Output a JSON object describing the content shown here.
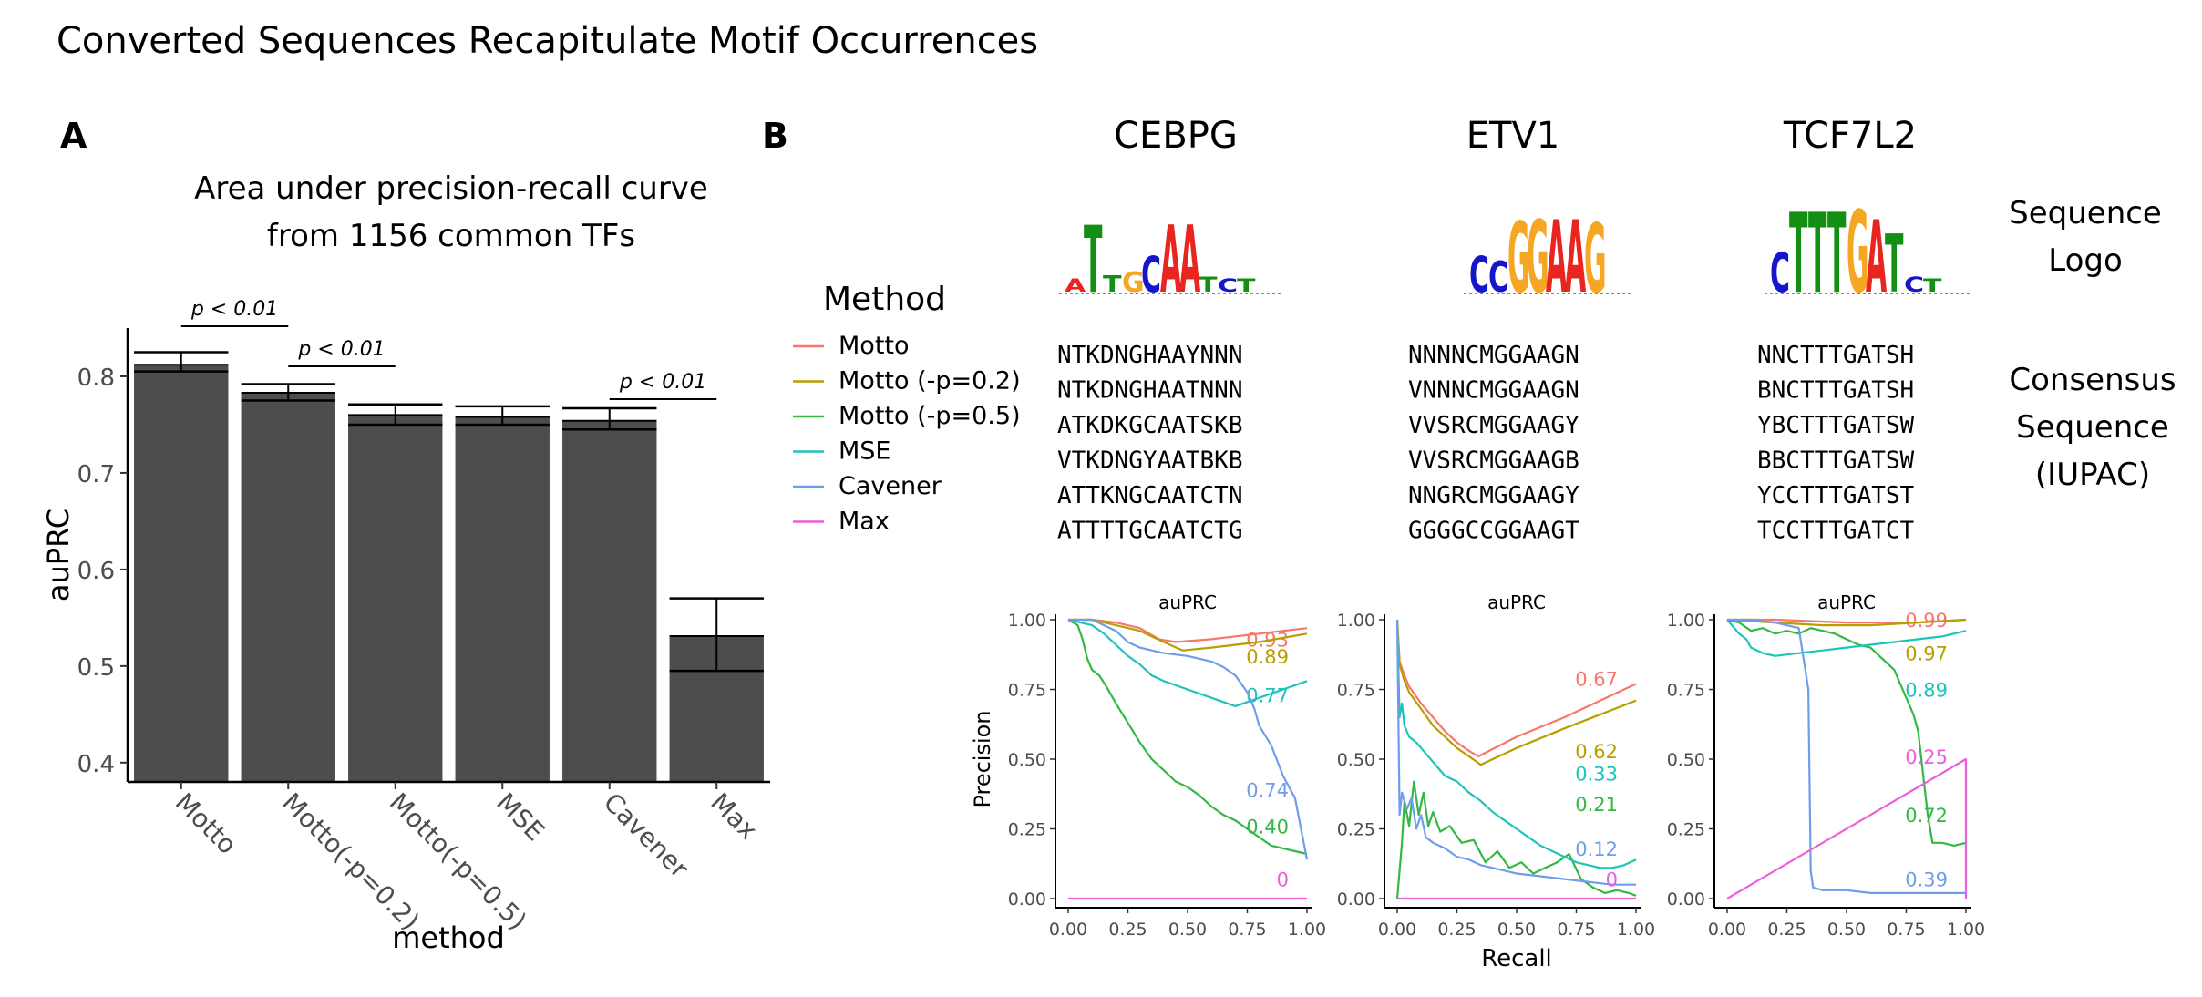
{
  "title": "Converted Sequences Recapitulate Motif Occurrences",
  "panel_labels": {
    "a": "A",
    "b": "B"
  },
  "colors": {
    "bar": "#4d4d4d",
    "Motto": "#F8766D",
    "Motto (-p=0.2)": "#B79F00",
    "Motto (-p=0.5)": "#32B843",
    "MSE": "#1FC3B9",
    "Cavener": "#6F9DEE",
    "Max": "#EC5FDB"
  },
  "chart_data": [
    {
      "type": "bar",
      "title": "Area under precision-recall curve",
      "subtitle": "from 1156 common TFs",
      "xlabel": "method",
      "ylabel": "auPRC",
      "categories": [
        "Motto",
        "Motto(-p=0.2)",
        "Motto(-p=0.5)",
        "MSE",
        "Cavener",
        "Max"
      ],
      "values": [
        0.812,
        0.783,
        0.76,
        0.758,
        0.754,
        0.531
      ],
      "error_low": [
        0.805,
        0.775,
        0.75,
        0.75,
        0.745,
        0.495
      ],
      "error_high": [
        0.825,
        0.792,
        0.771,
        0.769,
        0.767,
        0.57
      ],
      "ylim": [
        0.38,
        0.85
      ],
      "yticks": [
        0.4,
        0.5,
        0.6,
        0.7,
        0.8
      ],
      "annotations": [
        {
          "text": "p < 0.01",
          "from": "Motto",
          "to": "Motto(-p=0.2)"
        },
        {
          "text": "p < 0.01",
          "from": "Motto(-p=0.2)",
          "to": "Motto(-p=0.5)"
        },
        {
          "text": "p < 0.01",
          "from": "Cavener",
          "to": "Max"
        }
      ],
      "grid": false
    },
    {
      "type": "line",
      "facet": "CEBPG",
      "title": "auPRC",
      "xlabel": "",
      "ylabel": "Precision",
      "xlim": [
        0,
        1
      ],
      "ylim": [
        0,
        1
      ],
      "ticks": [
        "0.00",
        "0.25",
        "0.50",
        "0.75",
        "1.00"
      ],
      "series": [
        {
          "name": "Motto",
          "auprc": "0.93",
          "x": [
            0,
            0.1,
            0.2,
            0.3,
            0.38,
            0.45,
            0.6,
            0.8,
            1.0
          ],
          "y": [
            1.0,
            1.0,
            0.99,
            0.97,
            0.93,
            0.92,
            0.93,
            0.95,
            0.97
          ]
        },
        {
          "name": "Motto (-p=0.2)",
          "auprc": "0.89",
          "x": [
            0,
            0.1,
            0.2,
            0.3,
            0.4,
            0.48,
            0.6,
            0.8,
            1.0
          ],
          "y": [
            1.0,
            1.0,
            0.98,
            0.96,
            0.92,
            0.89,
            0.9,
            0.92,
            0.95
          ]
        },
        {
          "name": "Motto (-p=0.5)",
          "auprc": "0.40",
          "x": [
            0,
            0.04,
            0.06,
            0.08,
            0.1,
            0.13,
            0.16,
            0.2,
            0.25,
            0.3,
            0.35,
            0.4,
            0.45,
            0.5,
            0.55,
            0.6,
            0.65,
            0.7,
            0.75,
            0.8,
            0.85,
            0.9,
            0.95,
            1.0
          ],
          "y": [
            1.0,
            0.98,
            0.93,
            0.86,
            0.82,
            0.8,
            0.76,
            0.7,
            0.63,
            0.56,
            0.5,
            0.46,
            0.42,
            0.4,
            0.37,
            0.33,
            0.3,
            0.28,
            0.25,
            0.22,
            0.19,
            0.18,
            0.17,
            0.16
          ]
        },
        {
          "name": "MSE",
          "auprc": "0.77",
          "x": [
            0,
            0.05,
            0.1,
            0.15,
            0.2,
            0.25,
            0.3,
            0.35,
            0.4,
            0.5,
            0.6,
            0.7,
            0.8,
            0.9,
            1.0
          ],
          "y": [
            1.0,
            0.99,
            0.98,
            0.95,
            0.91,
            0.87,
            0.84,
            0.8,
            0.78,
            0.75,
            0.72,
            0.69,
            0.72,
            0.75,
            0.78
          ]
        },
        {
          "name": "Cavener",
          "auprc": "0.74",
          "x": [
            0,
            0.1,
            0.15,
            0.2,
            0.25,
            0.3,
            0.4,
            0.5,
            0.6,
            0.65,
            0.7,
            0.75,
            0.78,
            0.8,
            0.85,
            0.9,
            0.95,
            1.0
          ],
          "y": [
            1.0,
            1.0,
            0.98,
            0.96,
            0.92,
            0.9,
            0.88,
            0.87,
            0.85,
            0.83,
            0.8,
            0.74,
            0.68,
            0.62,
            0.55,
            0.44,
            0.36,
            0.14
          ]
        },
        {
          "name": "Max",
          "auprc": "0",
          "x": [
            0,
            1
          ],
          "y": [
            0,
            0
          ]
        }
      ]
    },
    {
      "type": "line",
      "facet": "ETV1",
      "title": "auPRC",
      "xlabel": "Recall",
      "ylabel": "",
      "xlim": [
        0,
        1
      ],
      "ylim": [
        0,
        1
      ],
      "ticks": [
        "0.00",
        "0.25",
        "0.50",
        "0.75",
        "1.00"
      ],
      "series": [
        {
          "name": "Motto",
          "auprc": "0.67",
          "x": [
            0,
            0.01,
            0.03,
            0.05,
            0.1,
            0.15,
            0.2,
            0.25,
            0.3,
            0.34,
            0.5,
            0.7,
            1.0
          ],
          "y": [
            1.0,
            0.85,
            0.8,
            0.76,
            0.7,
            0.65,
            0.6,
            0.56,
            0.53,
            0.51,
            0.58,
            0.65,
            0.77
          ]
        },
        {
          "name": "Motto (-p=0.2)",
          "auprc": "0.62",
          "x": [
            0,
            0.01,
            0.03,
            0.05,
            0.1,
            0.15,
            0.2,
            0.25,
            0.3,
            0.35,
            0.5,
            0.7,
            1.0
          ],
          "y": [
            1.0,
            0.84,
            0.78,
            0.74,
            0.68,
            0.62,
            0.58,
            0.54,
            0.51,
            0.48,
            0.54,
            0.61,
            0.71
          ]
        },
        {
          "name": "Motto (-p=0.5)",
          "auprc": "0.21",
          "x": [
            0,
            0.02,
            0.03,
            0.05,
            0.07,
            0.09,
            0.11,
            0.13,
            0.15,
            0.18,
            0.22,
            0.27,
            0.32,
            0.37,
            0.42,
            0.47,
            0.52,
            0.57,
            0.62,
            0.67,
            0.72,
            0.77,
            0.82,
            0.87,
            0.92,
            0.97,
            1.0
          ],
          "y": [
            0.0,
            0.2,
            0.35,
            0.26,
            0.42,
            0.3,
            0.38,
            0.26,
            0.31,
            0.24,
            0.26,
            0.2,
            0.21,
            0.13,
            0.17,
            0.11,
            0.13,
            0.09,
            0.11,
            0.13,
            0.16,
            0.07,
            0.04,
            0.02,
            0.03,
            0.02,
            0.01
          ]
        },
        {
          "name": "MSE",
          "auprc": "0.33",
          "x": [
            0,
            0.01,
            0.02,
            0.03,
            0.05,
            0.08,
            0.12,
            0.16,
            0.2,
            0.25,
            0.3,
            0.35,
            0.4,
            0.45,
            0.5,
            0.55,
            0.6,
            0.65,
            0.7,
            0.75,
            0.8,
            0.85,
            0.9,
            0.95,
            1.0
          ],
          "y": [
            1.0,
            0.65,
            0.7,
            0.62,
            0.58,
            0.56,
            0.52,
            0.48,
            0.44,
            0.42,
            0.38,
            0.35,
            0.31,
            0.28,
            0.25,
            0.22,
            0.19,
            0.17,
            0.15,
            0.13,
            0.12,
            0.11,
            0.11,
            0.12,
            0.14
          ]
        },
        {
          "name": "Cavener",
          "auprc": "0.12",
          "x": [
            0,
            0.01,
            0.02,
            0.04,
            0.06,
            0.08,
            0.1,
            0.12,
            0.15,
            0.2,
            0.25,
            0.3,
            0.35,
            0.4,
            0.5,
            0.6,
            0.7,
            0.8,
            0.9,
            1.0
          ],
          "y": [
            1.0,
            0.3,
            0.38,
            0.32,
            0.36,
            0.25,
            0.3,
            0.22,
            0.2,
            0.18,
            0.15,
            0.14,
            0.12,
            0.11,
            0.09,
            0.08,
            0.07,
            0.06,
            0.05,
            0.05
          ]
        },
        {
          "name": "Max",
          "auprc": "0",
          "x": [
            0,
            1
          ],
          "y": [
            0,
            0
          ]
        }
      ]
    },
    {
      "type": "line",
      "facet": "TCF7L2",
      "title": "auPRC",
      "xlabel": "",
      "ylabel": "",
      "xlim": [
        0,
        1
      ],
      "ylim": [
        0,
        1
      ],
      "ticks": [
        "0.00",
        "0.25",
        "0.50",
        "0.75",
        "1.00"
      ],
      "series": [
        {
          "name": "Motto",
          "auprc": "0.99",
          "x": [
            0,
            0.2,
            0.5,
            0.8,
            1.0
          ],
          "y": [
            1.0,
            1.0,
            0.99,
            0.99,
            1.0
          ]
        },
        {
          "name": "Motto (-p=0.2)",
          "auprc": "0.97",
          "x": [
            0,
            0.2,
            0.4,
            0.6,
            0.8,
            1.0
          ],
          "y": [
            1.0,
            0.99,
            0.98,
            0.98,
            0.99,
            1.0
          ]
        },
        {
          "name": "Motto (-p=0.5)",
          "auprc": "0.72",
          "x": [
            0,
            0.05,
            0.1,
            0.15,
            0.2,
            0.25,
            0.3,
            0.35,
            0.4,
            0.45,
            0.5,
            0.55,
            0.6,
            0.65,
            0.7,
            0.72,
            0.75,
            0.78,
            0.8,
            0.82,
            0.84,
            0.86,
            0.9,
            0.95,
            1.0
          ],
          "y": [
            1.0,
            0.99,
            0.96,
            0.97,
            0.95,
            0.96,
            0.95,
            0.97,
            0.96,
            0.95,
            0.93,
            0.91,
            0.9,
            0.86,
            0.82,
            0.78,
            0.72,
            0.66,
            0.6,
            0.45,
            0.3,
            0.2,
            0.2,
            0.19,
            0.2
          ]
        },
        {
          "name": "MSE",
          "auprc": "0.89",
          "x": [
            0,
            0.05,
            0.08,
            0.1,
            0.15,
            0.2,
            0.3,
            0.4,
            0.5,
            0.6,
            0.7,
            0.8,
            0.9,
            1.0
          ],
          "y": [
            1.0,
            0.95,
            0.93,
            0.9,
            0.88,
            0.87,
            0.88,
            0.89,
            0.9,
            0.91,
            0.92,
            0.93,
            0.94,
            0.96
          ]
        },
        {
          "name": "Cavener",
          "auprc": "0.39",
          "x": [
            0,
            0.1,
            0.2,
            0.3,
            0.34,
            0.35,
            0.36,
            0.4,
            0.5,
            0.6,
            0.7,
            0.8,
            0.9,
            1.0
          ],
          "y": [
            1.0,
            1.0,
            0.99,
            0.97,
            0.75,
            0.1,
            0.04,
            0.03,
            0.03,
            0.02,
            0.02,
            0.02,
            0.02,
            0.02
          ]
        },
        {
          "name": "Max",
          "auprc": "0.25",
          "x": [
            0,
            1,
            1
          ],
          "y": [
            0,
            0.5,
            0
          ]
        }
      ]
    }
  ],
  "panel_b": {
    "legend_title": "Method",
    "methods": [
      "Motto",
      "Motto (-p=0.2)",
      "Motto (-p=0.5)",
      "MSE",
      "Cavener",
      "Max"
    ],
    "tfs": [
      "CEBPG",
      "ETV1",
      "TCF7L2"
    ],
    "consensus": {
      "CEBPG": [
        "NTKDNGHAAYNNN",
        "NTKDNGHAATNNN",
        "ATKDKGCAATSKB",
        "VTKDNGYAATBKB",
        "ATTKNGCAATCTN",
        "ATTTTGCAATCTG"
      ],
      "ETV1": [
        "NNNNCMGGAAGN",
        "VNNNCMGGAAGN",
        "VVSRCMGGAAGY",
        "VVSRCMGGAAGB",
        "NNGRCMGGAAGY",
        "GGGGCCGGAAGT"
      ],
      "TCF7L2": [
        "NNCTTTGATSH",
        "BNCTTTGATSH",
        "YBCTTTGATSW",
        "BBCTTTGATSW",
        "YCCTTTGATST",
        "TCCTTTGATCT"
      ]
    },
    "row_labels": {
      "logo": [
        "Sequence",
        "Logo"
      ],
      "consensus": [
        "Consensus",
        "Sequence",
        "(IUPAC)"
      ]
    },
    "logos": {
      "CEBPG": [
        "A",
        "T",
        "T",
        "G",
        "C",
        "A",
        "A",
        "T",
        "C",
        "T"
      ],
      "ETV1": [
        "C",
        "C",
        "G",
        "G",
        "A",
        "A",
        "G"
      ],
      "TCF7L2": [
        "C",
        "T",
        "T",
        "T",
        "G",
        "A",
        "T",
        "C",
        "T"
      ]
    }
  }
}
